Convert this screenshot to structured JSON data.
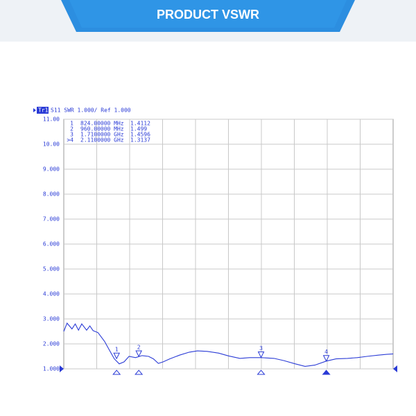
{
  "banner": {
    "title": "PRODUCT  VSWR"
  },
  "chart_data": {
    "type": "line",
    "trace_label": "Tr1",
    "header": "S11  SWR 1.000/ Ref 1.000",
    "xlim": [
      500,
      2520
    ],
    "ylim": [
      1,
      11
    ],
    "yticks": [
      {
        "value": 11,
        "label": "11.00"
      },
      {
        "value": 10,
        "label": "10.00"
      },
      {
        "value": 9,
        "label": "9.000"
      },
      {
        "value": 8,
        "label": "8.000"
      },
      {
        "value": 7,
        "label": "7.000"
      },
      {
        "value": 6,
        "label": "6.000"
      },
      {
        "value": 5,
        "label": "5.000"
      },
      {
        "value": 4,
        "label": "4.000"
      },
      {
        "value": 3,
        "label": "3.000"
      },
      {
        "value": 2,
        "label": "2.000"
      },
      {
        "value": 1,
        "label": "1.000"
      }
    ],
    "grid": true,
    "color": "#2a3bd6",
    "x": [
      500,
      520,
      550,
      570,
      590,
      610,
      640,
      660,
      680,
      710,
      750,
      780,
      810,
      840,
      870,
      900,
      940,
      980,
      1020,
      1050,
      1080,
      1110,
      1150,
      1210,
      1270,
      1320,
      1380,
      1450,
      1510,
      1580,
      1640,
      1710,
      1790,
      1850,
      1920,
      1980,
      2040,
      2110,
      2170,
      2240,
      2300,
      2360,
      2430,
      2480,
      2520
    ],
    "values": [
      2.5,
      2.83,
      2.6,
      2.8,
      2.55,
      2.8,
      2.55,
      2.72,
      2.53,
      2.45,
      2.1,
      1.75,
      1.4,
      1.2,
      1.28,
      1.5,
      1.45,
      1.53,
      1.5,
      1.4,
      1.22,
      1.28,
      1.4,
      1.55,
      1.67,
      1.72,
      1.7,
      1.63,
      1.52,
      1.42,
      1.45,
      1.45,
      1.42,
      1.33,
      1.2,
      1.1,
      1.15,
      1.31,
      1.4,
      1.42,
      1.45,
      1.5,
      1.55,
      1.58,
      1.6
    ],
    "markers": [
      {
        "table_id": "1",
        "label": "1",
        "freq": {
          "value": 824,
          "label": "824.00000 MHz"
        },
        "value": 1.4112
      },
      {
        "table_id": "2",
        "label": "2",
        "freq": {
          "value": 960,
          "label": "960.00000 MHz"
        },
        "value": 1.499
      },
      {
        "table_id": "3",
        "label": "3",
        "freq": {
          "value": 1710,
          "label": "1.7100000 GHz"
        },
        "value": 1.4596
      },
      {
        "table_id": ">4",
        "label": "4",
        "freq": {
          "value": 2110,
          "label": "2.1100000 GHz"
        },
        "value": 1.3137
      }
    ]
  }
}
